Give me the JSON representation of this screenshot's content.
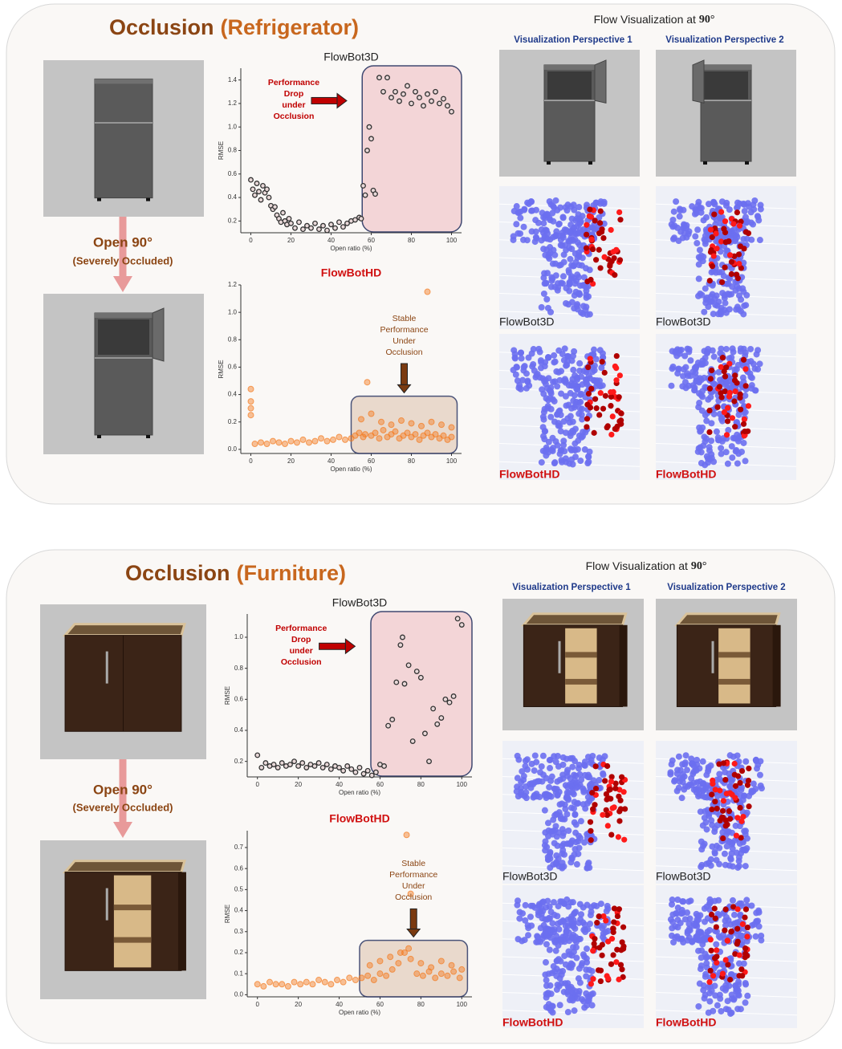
{
  "panels": [
    {
      "title": "Occlusion",
      "subject": "(Refrigerator)",
      "open_label": "Open 90°",
      "occlusion_note": "(Severely Occluded)",
      "flow_heading": "Flow Visualization at ",
      "flow_angle": "90°",
      "perspectives": [
        "Visualization Perspective 1",
        "Visualization Perspective 2"
      ],
      "vis_labels": [
        "FlowBot3D",
        "FlowBot3D",
        "FlowBotHD",
        "FlowBotHD"
      ]
    },
    {
      "title": "Occlusion",
      "subject": "(Furniture)",
      "open_label": "Open 90°",
      "occlusion_note": "(Severely Occluded)",
      "flow_heading": "Flow Visualization at ",
      "flow_angle": "90°",
      "perspectives": [
        "Visualization Perspective 1",
        "Visualization Perspective 2"
      ],
      "vis_labels": [
        "FlowBot3D",
        "FlowBot3D",
        "FlowBotHD",
        "FlowBotHD"
      ]
    }
  ],
  "chart_data": [
    {
      "type": "scatter",
      "title": "FlowBot3D",
      "title_color": "#222222",
      "xlabel": "Open ratio (%)",
      "ylabel": "RMSE",
      "annotation": [
        "Performance",
        "Drop",
        "under",
        "Occlusion"
      ],
      "annotation_color": "#c00000",
      "color": "#333333",
      "xlim": [
        -5,
        105
      ],
      "ylim": [
        0.1,
        1.5
      ],
      "xticks": [
        0,
        20,
        40,
        60,
        80,
        100
      ],
      "yticks": [
        0.2,
        0.4,
        0.6,
        0.8,
        {
          "value": 1,
          "label": "1.0"
        },
        1.2,
        1.4
      ],
      "x": [
        0,
        1,
        2,
        3,
        4,
        5,
        6,
        7,
        8,
        9,
        10,
        11,
        12,
        13,
        14,
        15,
        16,
        17,
        18,
        19,
        20,
        22,
        24,
        26,
        28,
        30,
        32,
        34,
        36,
        38,
        40,
        42,
        44,
        46,
        48,
        50,
        52,
        54,
        55,
        56,
        57,
        58,
        59,
        60,
        61,
        62,
        64,
        66,
        68,
        70,
        72,
        74,
        76,
        78,
        80,
        82,
        84,
        86,
        88,
        90,
        92,
        94,
        96,
        98,
        100
      ],
      "values": [
        0.55,
        0.47,
        0.42,
        0.52,
        0.45,
        0.38,
        0.5,
        0.44,
        0.47,
        0.4,
        0.33,
        0.3,
        0.32,
        0.25,
        0.22,
        0.19,
        0.27,
        0.2,
        0.17,
        0.22,
        0.18,
        0.14,
        0.19,
        0.13,
        0.16,
        0.14,
        0.18,
        0.13,
        0.16,
        0.12,
        0.17,
        0.14,
        0.19,
        0.15,
        0.18,
        0.2,
        0.21,
        0.23,
        0.22,
        0.5,
        0.42,
        0.8,
        1.0,
        0.9,
        0.46,
        0.43,
        1.42,
        1.3,
        1.42,
        1.25,
        1.3,
        1.22,
        1.28,
        1.35,
        1.2,
        1.3,
        1.25,
        1.18,
        1.28,
        1.22,
        1.3,
        1.2,
        1.24,
        1.18,
        1.13
      ]
    },
    {
      "type": "scatter",
      "title": "FlowBotHD",
      "title_color": "#d01010",
      "xlabel": "Open ratio (%)",
      "ylabel": "RMSE",
      "annotation": [
        "Stable",
        "Performance",
        "Under",
        "Occlusion"
      ],
      "annotation_color": "#8b4513",
      "color": "#f47a1f",
      "xlim": [
        -5,
        105
      ],
      "ylim": [
        -0.03,
        1.2
      ],
      "xticks": [
        0,
        20,
        40,
        60,
        80,
        100
      ],
      "yticks": [
        {
          "value": 0,
          "label": "0.0"
        },
        0.2,
        0.4,
        0.6,
        0.8,
        {
          "value": 1,
          "label": "1.0"
        },
        1.2
      ],
      "x": [
        0,
        0,
        0,
        0,
        2,
        5,
        8,
        11,
        14,
        17,
        20,
        23,
        26,
        29,
        32,
        35,
        38,
        41,
        44,
        47,
        50,
        52,
        54,
        56,
        57,
        58,
        60,
        62,
        64,
        66,
        68,
        70,
        72,
        74,
        76,
        78,
        80,
        82,
        84,
        86,
        88,
        88,
        90,
        92,
        94,
        96,
        98,
        100,
        55,
        60,
        65,
        70,
        75,
        80,
        85,
        90,
        95,
        100
      ],
      "values": [
        0.3,
        0.35,
        0.44,
        0.25,
        0.04,
        0.05,
        0.04,
        0.06,
        0.05,
        0.04,
        0.06,
        0.05,
        0.07,
        0.05,
        0.06,
        0.08,
        0.06,
        0.07,
        0.09,
        0.07,
        0.08,
        0.1,
        0.12,
        0.09,
        0.11,
        0.49,
        0.1,
        0.12,
        0.08,
        0.14,
        0.09,
        0.11,
        0.13,
        0.08,
        0.1,
        0.12,
        0.09,
        0.11,
        0.07,
        0.1,
        0.12,
        1.15,
        0.09,
        0.11,
        0.08,
        0.1,
        0.07,
        0.09,
        0.22,
        0.26,
        0.2,
        0.18,
        0.21,
        0.19,
        0.17,
        0.2,
        0.18,
        0.16
      ]
    },
    {
      "type": "scatter",
      "title": "FlowBot3D",
      "title_color": "#222222",
      "xlabel": "Open ratio (%)",
      "ylabel": "RMSE",
      "annotation": [
        "Performance",
        "Drop",
        "under",
        "Occlusion"
      ],
      "annotation_color": "#c00000",
      "color": "#333333",
      "xlim": [
        -5,
        105
      ],
      "ylim": [
        0.1,
        1.15
      ],
      "xticks": [
        0,
        20,
        40,
        60,
        80,
        100
      ],
      "yticks": [
        0.2,
        0.4,
        0.6,
        0.8,
        {
          "value": 1,
          "label": "1.0"
        }
      ],
      "x": [
        0,
        2,
        4,
        6,
        8,
        10,
        12,
        14,
        16,
        18,
        20,
        22,
        24,
        26,
        28,
        30,
        32,
        34,
        36,
        38,
        40,
        42,
        44,
        46,
        48,
        50,
        52,
        54,
        56,
        58,
        60,
        62,
        64,
        66,
        68,
        70,
        71,
        72,
        74,
        76,
        78,
        80,
        82,
        84,
        86,
        88,
        90,
        92,
        94,
        96,
        98,
        100
      ],
      "values": [
        0.24,
        0.16,
        0.19,
        0.17,
        0.18,
        0.16,
        0.19,
        0.17,
        0.18,
        0.2,
        0.17,
        0.19,
        0.16,
        0.18,
        0.17,
        0.19,
        0.16,
        0.18,
        0.15,
        0.17,
        0.16,
        0.14,
        0.17,
        0.15,
        0.13,
        0.16,
        0.12,
        0.14,
        0.11,
        0.13,
        0.18,
        0.17,
        0.43,
        0.47,
        0.71,
        0.95,
        1.0,
        0.7,
        0.82,
        0.33,
        0.78,
        0.74,
        0.38,
        0.2,
        0.54,
        0.44,
        0.48,
        0.6,
        0.58,
        0.62,
        1.12,
        1.08
      ]
    },
    {
      "type": "scatter",
      "title": "FlowBotHD",
      "title_color": "#d01010",
      "xlabel": "Open ratio (%)",
      "ylabel": "RMSE",
      "annotation": [
        "Stable",
        "Performance",
        "Under",
        "Occlusion"
      ],
      "annotation_color": "#8b4513",
      "color": "#f47a1f",
      "xlim": [
        -5,
        105
      ],
      "ylim": [
        -0.01,
        0.78
      ],
      "xticks": [
        0,
        20,
        40,
        60,
        80,
        100
      ],
      "yticks": [
        {
          "value": 0,
          "label": "0.0"
        },
        0.1,
        0.2,
        0.3,
        0.4,
        0.5,
        0.6,
        0.7
      ],
      "x": [
        0,
        3,
        6,
        9,
        12,
        15,
        18,
        21,
        24,
        27,
        30,
        33,
        36,
        39,
        42,
        45,
        48,
        51,
        54,
        57,
        60,
        63,
        66,
        69,
        72,
        73,
        74,
        75,
        78,
        81,
        84,
        87,
        90,
        93,
        96,
        99,
        100,
        55,
        60,
        65,
        70,
        75,
        80,
        85,
        90,
        95
      ],
      "values": [
        0.05,
        0.04,
        0.06,
        0.05,
        0.05,
        0.04,
        0.06,
        0.05,
        0.06,
        0.05,
        0.07,
        0.06,
        0.05,
        0.07,
        0.06,
        0.08,
        0.07,
        0.08,
        0.09,
        0.07,
        0.1,
        0.09,
        0.12,
        0.15,
        0.2,
        0.76,
        0.22,
        0.48,
        0.1,
        0.09,
        0.11,
        0.08,
        0.1,
        0.09,
        0.11,
        0.08,
        0.12,
        0.14,
        0.16,
        0.18,
        0.2,
        0.17,
        0.15,
        0.13,
        0.16,
        0.14
      ]
    }
  ]
}
